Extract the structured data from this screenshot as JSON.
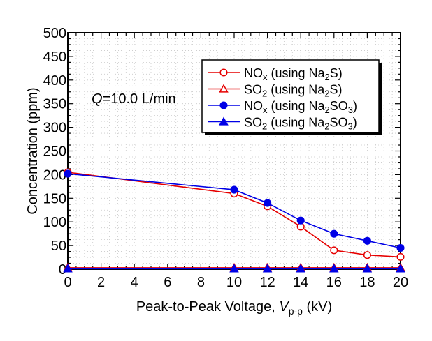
{
  "chart_data": {
    "type": "line",
    "xlabel": {
      "prefix": "Peak-to-Peak Voltage, ",
      "var": "V",
      "sub": "p-p",
      "suffix": " (kV)"
    },
    "ylabel": "Concentration  (ppm)",
    "xlim": [
      0,
      20
    ],
    "ylim": [
      0,
      500
    ],
    "xticks": [
      0,
      2,
      4,
      6,
      8,
      10,
      12,
      14,
      16,
      18,
      20
    ],
    "yticks": [
      0,
      50,
      100,
      150,
      200,
      250,
      300,
      350,
      400,
      450,
      500
    ],
    "grid": true,
    "legend_position": "top-right",
    "annotation": {
      "var": "Q",
      "text": "=10.0 L/min"
    },
    "series": [
      {
        "id": "nox_na2s",
        "legend": {
          "a": "NO",
          "a_sub": "x",
          "b": " (using Na",
          "b_sub": "2",
          "c": "S)"
        },
        "color": "#e60000",
        "marker": "circle-open",
        "x": [
          0,
          10,
          12,
          14,
          16,
          18,
          20
        ],
        "y": [
          205,
          160,
          133,
          90,
          40,
          30,
          26
        ]
      },
      {
        "id": "so2_na2s",
        "legend": {
          "a": "SO",
          "a_sub": "2",
          "b": " (using Na",
          "b_sub": "2",
          "c": "S)"
        },
        "color": "#e60000",
        "marker": "triangle-open",
        "x": [
          0,
          10,
          12,
          14,
          16,
          18,
          20
        ],
        "y": [
          3,
          3,
          3,
          3,
          3,
          3,
          3
        ]
      },
      {
        "id": "nox_na2so3",
        "legend": {
          "a": "NO",
          "a_sub": "x",
          "b": " (using Na",
          "b_sub": "2",
          "c": "SO",
          "c_sub": "3",
          "d": ")"
        },
        "color": "#0000e6",
        "marker": "circle-filled",
        "x": [
          0,
          10,
          12,
          14,
          16,
          18,
          20
        ],
        "y": [
          202,
          168,
          140,
          103,
          75,
          60,
          45
        ]
      },
      {
        "id": "so2_na2so3",
        "legend": {
          "a": "SO",
          "a_sub": "2",
          "b": " (using Na",
          "b_sub": "2",
          "c": "SO",
          "c_sub": "3",
          "d": ")"
        },
        "color": "#0000e6",
        "marker": "triangle-filled",
        "x": [
          0,
          10,
          12,
          14,
          16,
          18,
          20
        ],
        "y": [
          1,
          1,
          1,
          1,
          1,
          1,
          1
        ]
      }
    ]
  }
}
